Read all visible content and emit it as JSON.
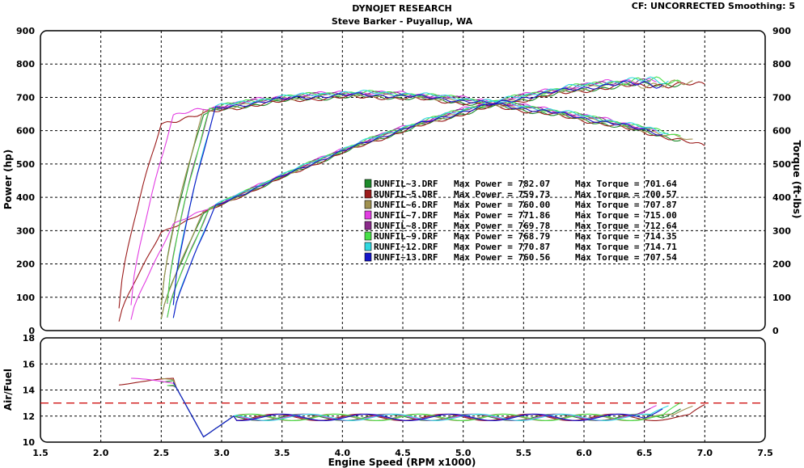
{
  "header": {
    "title": "DYNOJET RESEARCH",
    "subtitle": "Steve Barker - Puyallup, WA",
    "settings": "CF: UNCORRECTED  Smoothing: 5"
  },
  "colors": {
    "plot_bg": "#ffffff",
    "frame_bg": "#ffffff",
    "grid": "#000000",
    "reference_line": "#cc0000"
  },
  "chart_data": [
    {
      "type": "line",
      "panel": "power-torque",
      "xlabel": "Engine Speed (RPM x1000)",
      "ylabel": "Power (hp)",
      "ylabel_right": "Torque (ft-lbs)",
      "xlim": [
        1.5,
        7.5
      ],
      "ylim": [
        0,
        900
      ],
      "x_ticks": [
        "1.5",
        "2.0",
        "2.5",
        "3.0",
        "3.5",
        "4.0",
        "4.5",
        "5.0",
        "5.5",
        "6.0",
        "6.5",
        "7.0",
        "7.5"
      ],
      "y_ticks": [
        "0",
        "100",
        "200",
        "300",
        "400",
        "500",
        "600",
        "700",
        "800",
        "900"
      ],
      "grid": true,
      "legend_position": "center-right",
      "series": [
        {
          "name": "RUNFIL~3.DRF",
          "max_power_label": "Max Power = 782.07",
          "max_torque_label": "Max Torque = 701.64",
          "color": "#1c8a2a",
          "x_start": 2.5,
          "x_end": 6.8,
          "max_power": 782.07,
          "max_torque": 701.64
        },
        {
          "name": "RUNFIL~5.DRF",
          "max_power_label": "Max Power = 759.73",
          "max_torque_label": "Max Torque = 700.57",
          "color": "#9b1b1b",
          "x_start": 2.15,
          "x_end": 7.02,
          "max_power": 759.73,
          "max_torque": 700.57
        },
        {
          "name": "RUNFIL~6.DRF",
          "max_power_label": "Max Power = 760.00",
          "max_torque_label": "Max Torque = 707.87",
          "color": "#a09150",
          "x_start": 2.5,
          "x_end": 6.9,
          "max_power": 760.0,
          "max_torque": 707.87
        },
        {
          "name": "RUNFIL~7.DRF",
          "max_power_label": "Max Power = 771.86",
          "max_torque_label": "Max Torque = 715.00",
          "color": "#e23ee2",
          "x_start": 2.25,
          "x_end": 6.62,
          "max_power": 771.86,
          "max_torque": 715.0
        },
        {
          "name": "RUNFIL~8.DRF",
          "max_power_label": "Max Power = 769.78",
          "max_torque_label": "Max Torque = 712.64",
          "color": "#8a2a8a",
          "x_start": 2.55,
          "x_end": 6.55,
          "max_power": 769.78,
          "max_torque": 712.64
        },
        {
          "name": "RUNFIL~9.DRF",
          "max_power_label": "Max Power = 768.79",
          "max_torque_label": "Max Torque = 714.35",
          "color": "#48e048",
          "x_start": 2.55,
          "x_end": 6.8,
          "max_power": 768.79,
          "max_torque": 714.35
        },
        {
          "name": "RUNFI~12.DRF",
          "max_power_label": "Max Power = 770.87",
          "max_torque_label": "Max Torque = 714.71",
          "color": "#30d8e0",
          "x_start": 2.6,
          "x_end": 6.7,
          "max_power": 770.87,
          "max_torque": 714.71
        },
        {
          "name": "RUNFI~13.DRF",
          "max_power_label": "Max Power = 760.56",
          "max_torque_label": "Max Torque = 707.54",
          "color": "#1414c8",
          "x_start": 2.6,
          "x_end": 6.65,
          "max_power": 760.56,
          "max_torque": 707.54
        }
      ]
    },
    {
      "type": "line",
      "panel": "air-fuel",
      "ylabel": "Air/Fuel",
      "xlim": [
        1.5,
        7.5
      ],
      "ylim": [
        10,
        18
      ],
      "y_ticks": [
        "10",
        "12",
        "14",
        "16",
        "18"
      ],
      "grid": true,
      "reference_line": 13.0
    }
  ]
}
